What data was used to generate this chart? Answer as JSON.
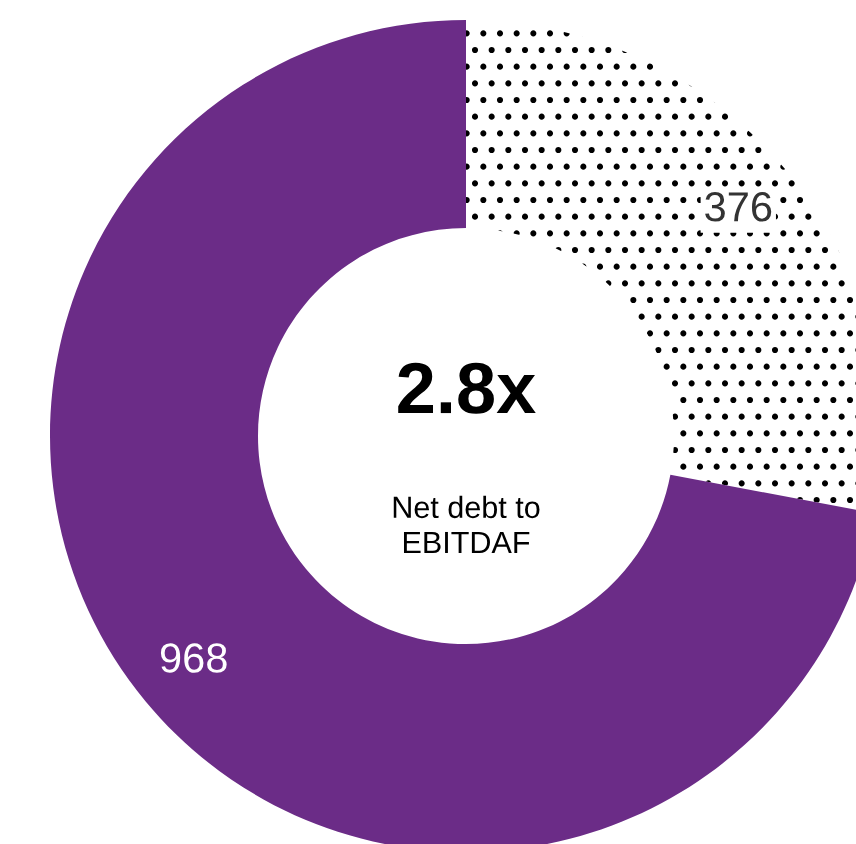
{
  "chart_data": {
    "type": "donut",
    "title": "2.8x",
    "subtitle": "Net debt to\nEBITDAF",
    "categories": [
      null,
      null
    ],
    "values": [
      376,
      968
    ],
    "colors": [
      "#ffffff",
      "#6b2c87"
    ],
    "data_labels": true,
    "legend": false
  }
}
